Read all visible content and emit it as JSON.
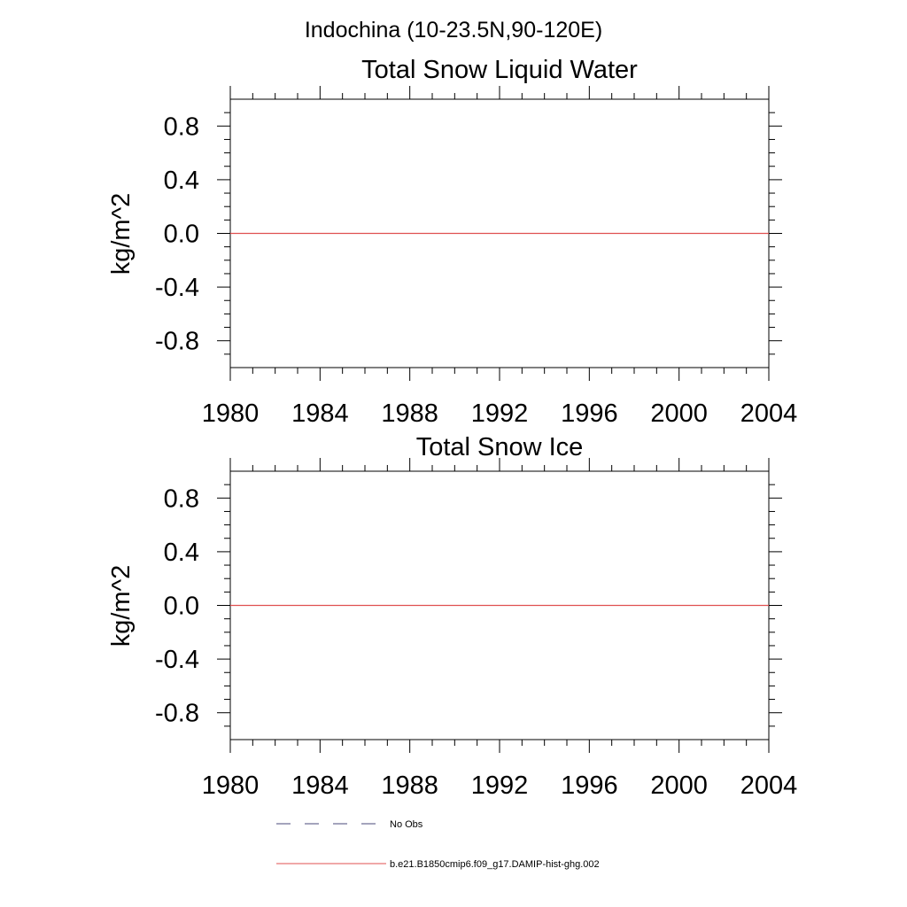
{
  "figure": {
    "title": "Indochina (10-23.5N,90-120E)"
  },
  "chart_data": [
    {
      "type": "line",
      "title": "Total Snow Liquid Water",
      "xlabel": "",
      "ylabel": "kg/m^2",
      "xlim": [
        1980,
        2004
      ],
      "ylim": [
        -1.0,
        1.0
      ],
      "xticks": [
        "1980",
        "1984",
        "1988",
        "1992",
        "1996",
        "2000",
        "2004"
      ],
      "yticks": [
        "0.8",
        "0.4",
        "0.0",
        "-0.4",
        "-0.8"
      ],
      "grid": false,
      "series": [
        {
          "name": "b.e21.B1850cmip6.f09_g17.DAMIP-hist-ghg.002",
          "color": "#e05050",
          "style": "solid",
          "x": [
            1980,
            2004
          ],
          "y": [
            0.0,
            0.0
          ]
        }
      ]
    },
    {
      "type": "line",
      "title": "Total Snow Ice",
      "xlabel": "",
      "ylabel": "kg/m^2",
      "xlim": [
        1980,
        2004
      ],
      "ylim": [
        -1.0,
        1.0
      ],
      "xticks": [
        "1980",
        "1984",
        "1988",
        "1992",
        "1996",
        "2000",
        "2004"
      ],
      "yticks": [
        "0.8",
        "0.4",
        "0.0",
        "-0.4",
        "-0.8"
      ],
      "grid": false,
      "series": [
        {
          "name": "b.e21.B1850cmip6.f09_g17.DAMIP-hist-ghg.002",
          "color": "#e05050",
          "style": "solid",
          "x": [
            1980,
            2004
          ],
          "y": [
            0.0,
            0.0
          ]
        }
      ]
    }
  ],
  "legend": {
    "placement": "bottom",
    "items": [
      {
        "label": "No Obs",
        "color": "#4a4a7a",
        "style": "dashed"
      },
      {
        "label": "b.e21.B1850cmip6.f09_g17.DAMIP-hist-ghg.002",
        "color": "#e05050",
        "style": "solid"
      }
    ]
  }
}
